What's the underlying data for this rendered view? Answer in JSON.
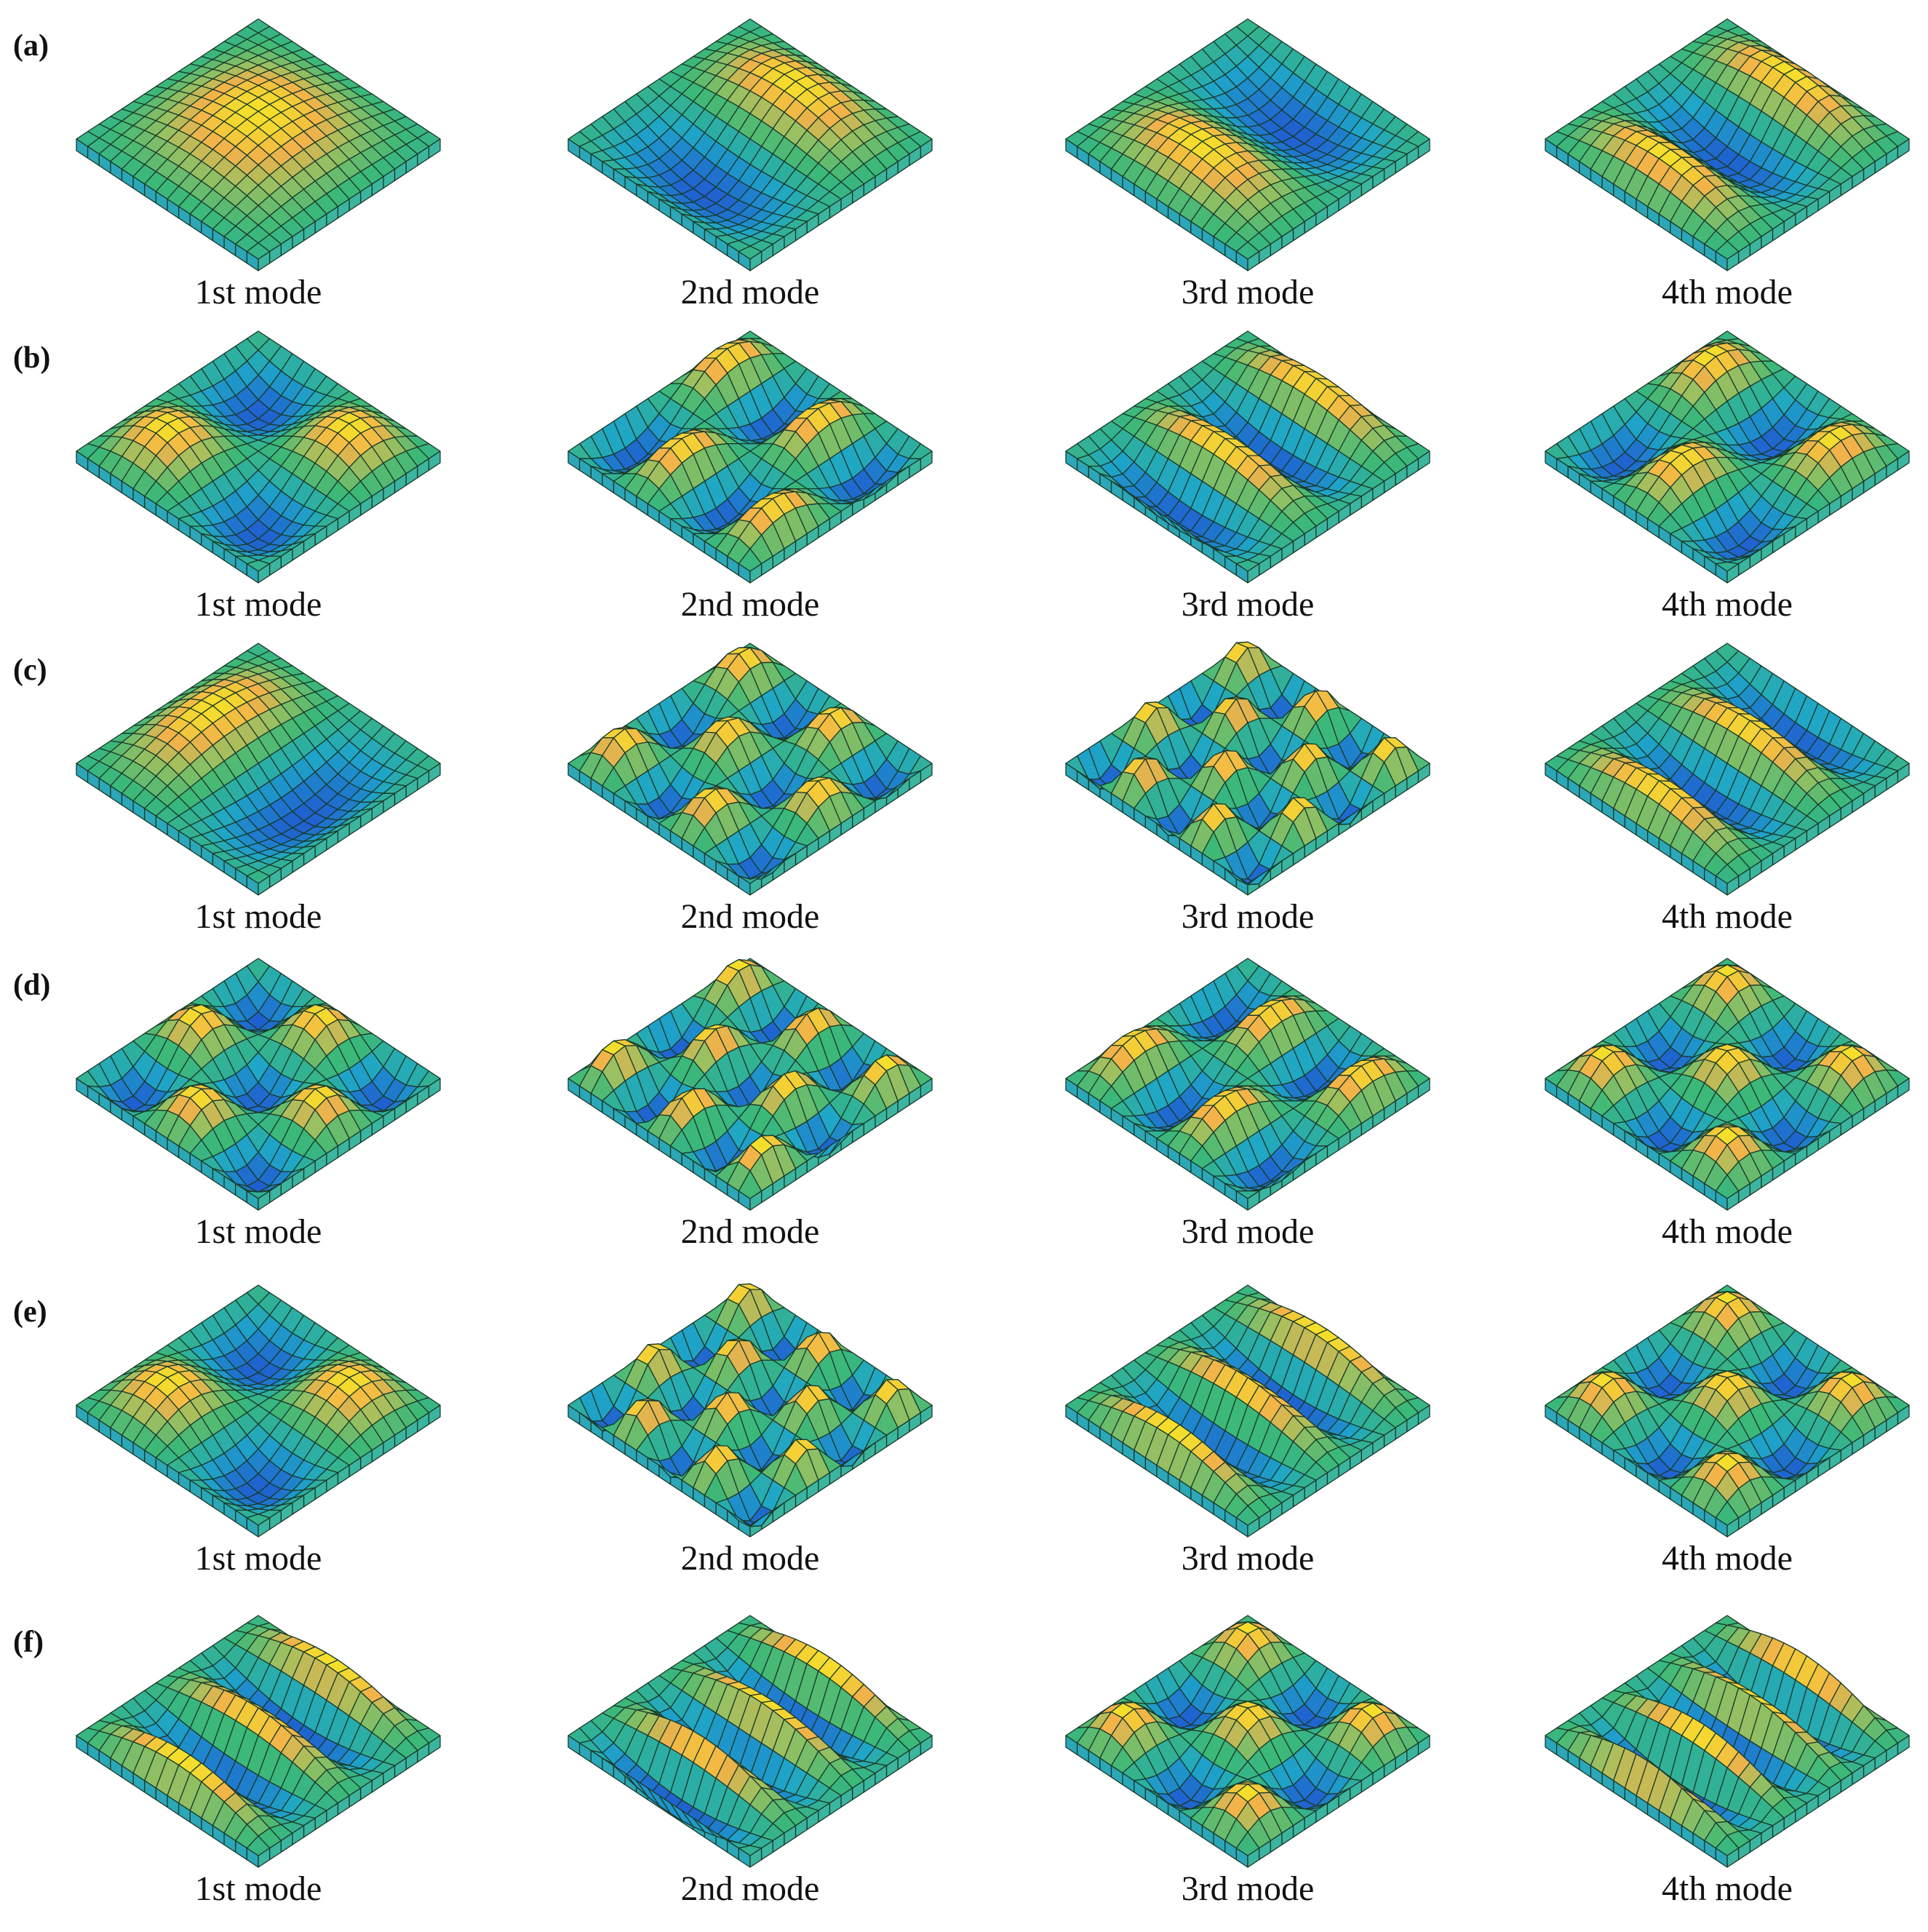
{
  "figure": {
    "rows": [
      {
        "label": "(a)",
        "captions": [
          "1st mode",
          "2nd mode",
          "3rd mode",
          "4th mode"
        ]
      },
      {
        "label": "(b)",
        "captions": [
          "1st mode",
          "2nd mode",
          "3rd mode",
          "4th mode"
        ]
      },
      {
        "label": "(c)",
        "captions": [
          "1st mode",
          "2nd mode",
          "3rd mode",
          "4th mode"
        ]
      },
      {
        "label": "(d)",
        "captions": [
          "1st mode",
          "2nd mode",
          "3rd mode",
          "4th mode"
        ]
      },
      {
        "label": "(e)",
        "captions": [
          "1st mode",
          "2nd mode",
          "3rd mode",
          "4th mode"
        ]
      },
      {
        "label": "(f)",
        "captions": [
          "1st mode",
          "2nd mode",
          "3rd mode",
          "4th mode"
        ]
      }
    ]
  }
}
